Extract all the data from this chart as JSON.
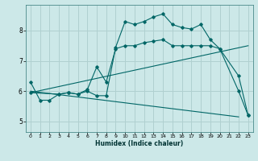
{
  "xlabel": "Humidex (Indice chaleur)",
  "bg_color": "#cce8e8",
  "line_color": "#006666",
  "grid_color": "#b0d0d0",
  "xlim": [
    -0.5,
    23.5
  ],
  "ylim": [
    4.65,
    8.85
  ],
  "yticks": [
    5,
    6,
    7,
    8
  ],
  "xticks": [
    0,
    1,
    2,
    3,
    4,
    5,
    6,
    7,
    8,
    9,
    10,
    11,
    12,
    13,
    14,
    15,
    16,
    17,
    18,
    19,
    20,
    21,
    22,
    23
  ],
  "line1_x": [
    0,
    1,
    2,
    3,
    4,
    5,
    6,
    7,
    8,
    9,
    10,
    11,
    12,
    13,
    14,
    15,
    16,
    17,
    18,
    19,
    20,
    22,
    23
  ],
  "line1_y": [
    6.3,
    5.7,
    5.7,
    5.9,
    5.95,
    5.9,
    6.0,
    5.85,
    5.85,
    7.45,
    8.3,
    8.2,
    8.3,
    8.45,
    8.55,
    8.2,
    8.1,
    8.05,
    8.2,
    7.7,
    7.4,
    6.5,
    5.2
  ],
  "line2_x": [
    0,
    3,
    4,
    5,
    6,
    7,
    8,
    9,
    10,
    11,
    12,
    13,
    14,
    15,
    16,
    17,
    18,
    19,
    20,
    22,
    23
  ],
  "line2_y": [
    5.95,
    5.9,
    5.95,
    5.9,
    6.05,
    6.8,
    6.3,
    7.4,
    7.5,
    7.5,
    7.6,
    7.65,
    7.7,
    7.5,
    7.5,
    7.5,
    7.5,
    7.5,
    7.4,
    6.0,
    5.2
  ],
  "line3_x": [
    0,
    23
  ],
  "line3_y": [
    5.95,
    7.5
  ],
  "line4_x": [
    0,
    22
  ],
  "line4_y": [
    6.0,
    5.15
  ]
}
